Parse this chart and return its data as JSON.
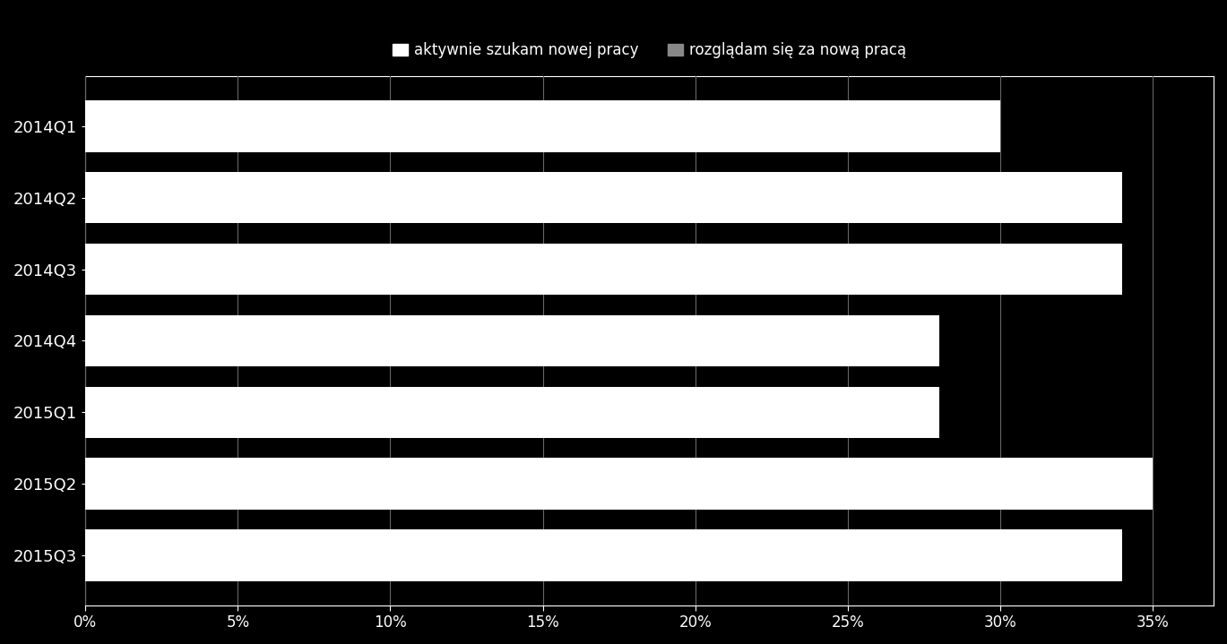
{
  "categories": [
    "2014Q1",
    "2014Q2",
    "2014Q3",
    "2014Q4",
    "2015Q1",
    "2015Q2",
    "2015Q3"
  ],
  "series1_label": "aktywnie szukam nowej pracy",
  "series2_label": "rozglądam się za nową pracą",
  "total_values": [
    0.3,
    0.34,
    0.34,
    0.28,
    0.28,
    0.35,
    0.34
  ],
  "bar_color": "#ffffff",
  "background_color": "#000000",
  "text_color": "#ffffff",
  "xlim": [
    0,
    0.37
  ],
  "xtick_values": [
    0.0,
    0.05,
    0.1,
    0.15,
    0.2,
    0.25,
    0.3,
    0.35
  ],
  "xtick_labels": [
    "0%",
    "5%",
    "10%",
    "15%",
    "20%",
    "25%",
    "30%",
    "35%"
  ],
  "grid_color": "#666666",
  "legend_marker_color1": "#ffffff",
  "legend_marker_color2": "#888888",
  "bar_height": 0.72,
  "figsize": [
    13.69,
    7.19
  ],
  "ylabel_fontsize": 13,
  "xlabel_fontsize": 12,
  "legend_fontsize": 12
}
